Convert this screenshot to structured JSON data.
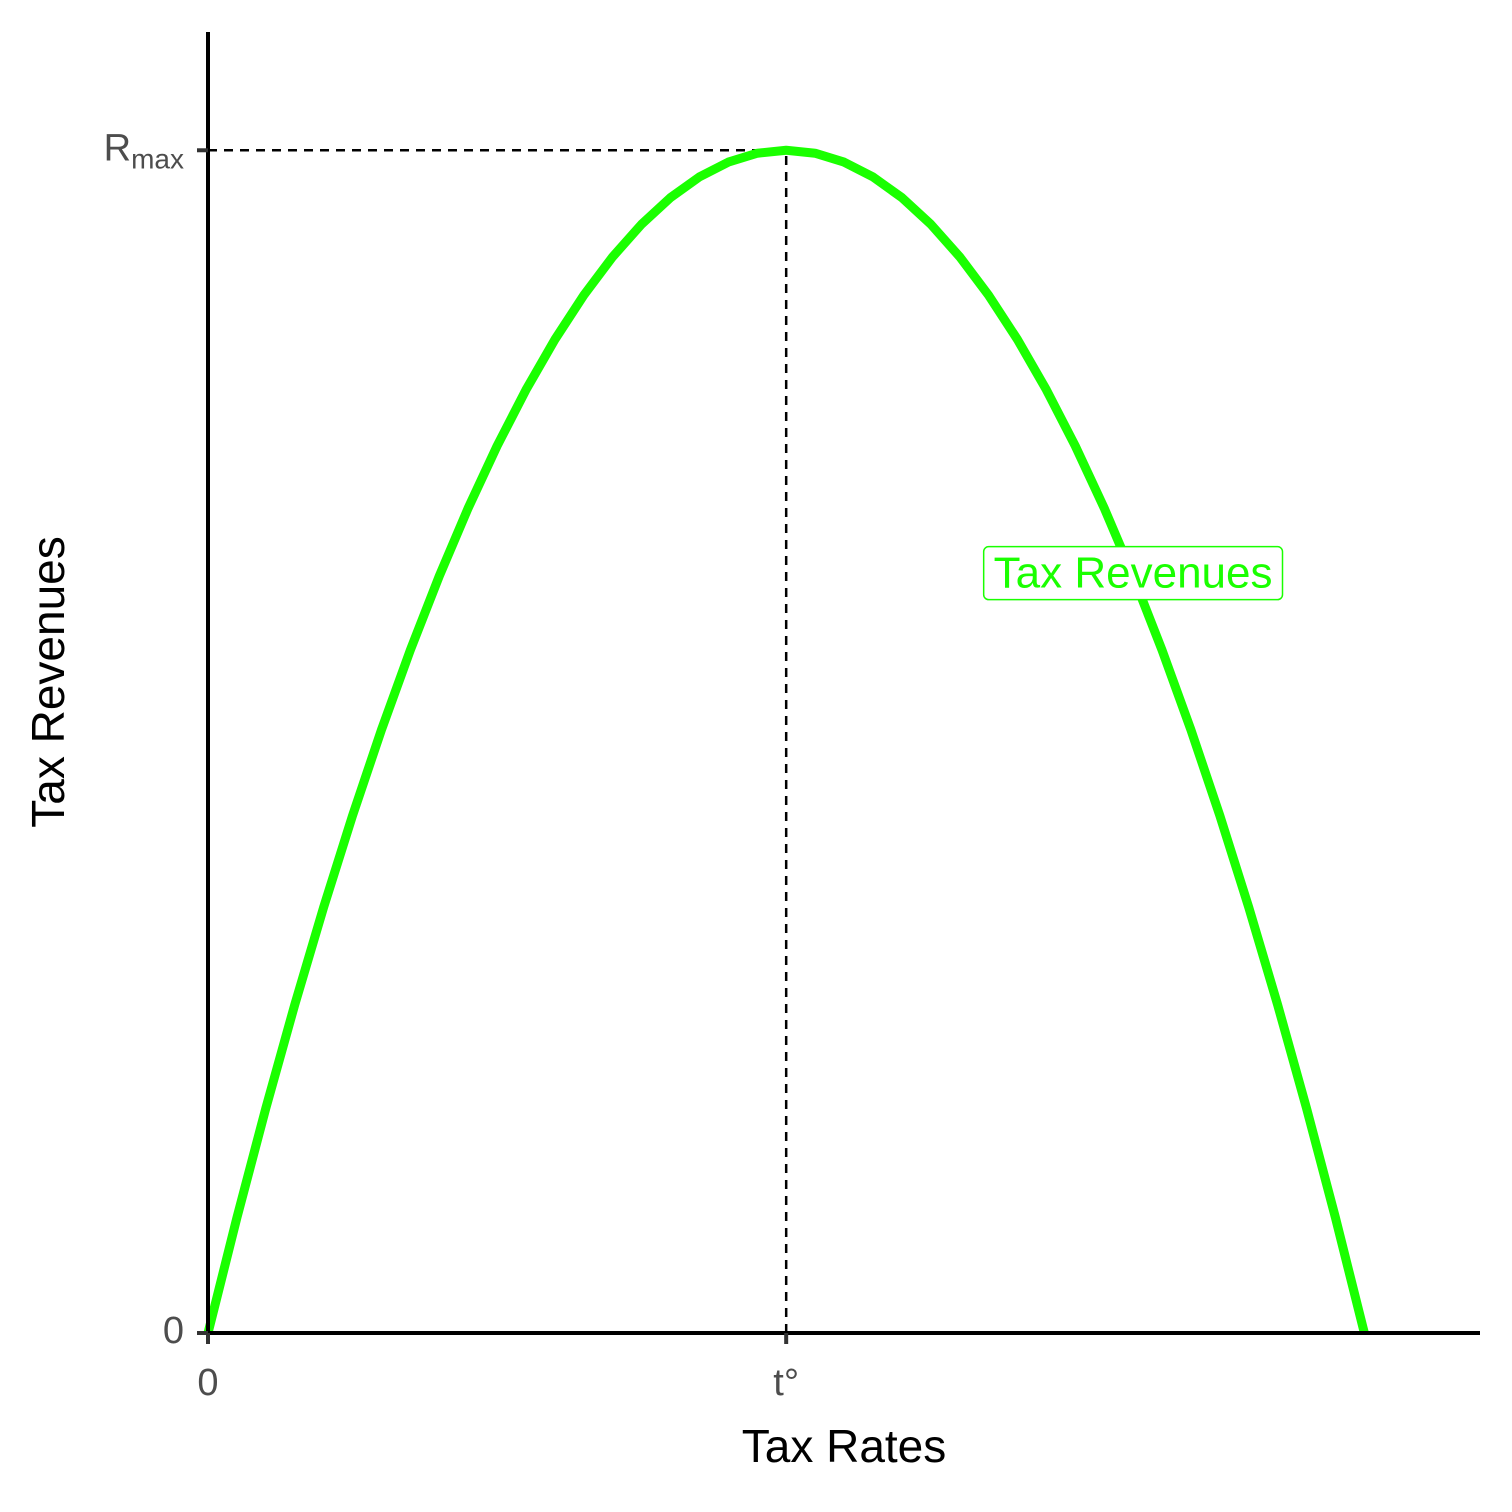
{
  "chart_data": {
    "type": "line",
    "x_label": "Tax Rates",
    "y_label": "Tax Revenues",
    "x": [
      0,
      0.025,
      0.05,
      0.075,
      0.1,
      0.125,
      0.15,
      0.175,
      0.2,
      0.225,
      0.25,
      0.275,
      0.3,
      0.325,
      0.35,
      0.375,
      0.4,
      0.425,
      0.45,
      0.475,
      0.5,
      0.525,
      0.55,
      0.575,
      0.6,
      0.625,
      0.65,
      0.675,
      0.7,
      0.725,
      0.75,
      0.775,
      0.8,
      0.825,
      0.85,
      0.875,
      0.9,
      0.925,
      0.95,
      0.975,
      1
    ],
    "series": [
      {
        "color": "#1aff00",
        "values": [
          0,
          0.0975,
          0.19,
          0.2775,
          0.36,
          0.4375,
          0.51,
          0.5775,
          0.64,
          0.6975,
          0.75,
          0.7975,
          0.84,
          0.8775,
          0.91,
          0.9375,
          0.96,
          0.9775,
          0.99,
          0.9975,
          1,
          0.9975,
          0.99,
          0.9775,
          0.96,
          0.9375,
          0.91,
          0.8775,
          0.84,
          0.7975,
          0.75,
          0.6975,
          0.64,
          0.5775,
          0.51,
          0.4375,
          0.36,
          0.2775,
          0.19,
          0.0975,
          0
        ]
      }
    ],
    "xlim": [
      0,
      1.1
    ],
    "ylim": [
      0,
      1.1
    ],
    "xticks": [
      0,
      {
        "value": 0.5,
        "label": "t°"
      }
    ],
    "yticks": [
      0,
      {
        "value": 1,
        "label": "R",
        "subscript": "max"
      }
    ],
    "reference_point": {
      "x": 0.5,
      "y": 1
    },
    "annotations": [
      {
        "text": "Tax Revenues",
        "x": 0.8,
        "y": 0.64
      }
    ]
  }
}
